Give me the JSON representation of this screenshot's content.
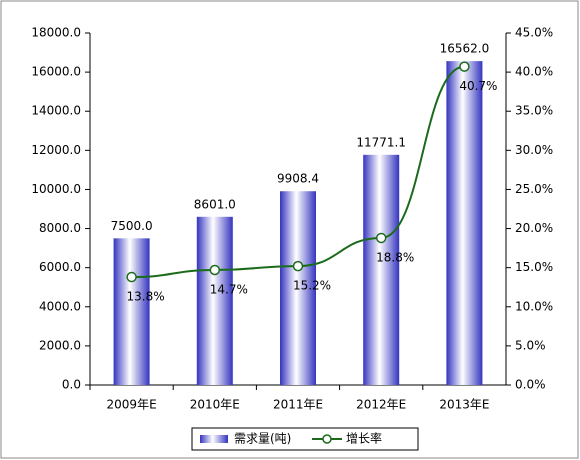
{
  "chart_data": {
    "type": "bar",
    "categories": [
      "2009年E",
      "2010年E",
      "2011年E",
      "2012年E",
      "2013年E"
    ],
    "series": [
      {
        "name": "需求量(吨)",
        "type": "bar",
        "color": "#3434c0",
        "values": [
          7500.0,
          8601.0,
          9908.4,
          11771.1,
          16562.0
        ],
        "value_labels": [
          "7500.0",
          "8601.0",
          "9908.4",
          "11771.1",
          "16562.0"
        ]
      },
      {
        "name": "增长率",
        "type": "line",
        "axis": "y2",
        "color": "#1b6b1b",
        "values": [
          13.8,
          14.7,
          15.2,
          18.8,
          40.7
        ],
        "value_labels": [
          "13.8%",
          "14.7%",
          "15.2%",
          "18.8%",
          "40.7%"
        ]
      }
    ],
    "ylim": [
      0,
      18000
    ],
    "yticks": [
      {
        "value": 0,
        "label": "0.0"
      },
      {
        "value": 2000,
        "label": "2000.0"
      },
      {
        "value": 4000,
        "label": "4000.0"
      },
      {
        "value": 6000,
        "label": "6000.0"
      },
      {
        "value": 8000,
        "label": "8000.0"
      },
      {
        "value": 10000,
        "label": "10000.0"
      },
      {
        "value": 12000,
        "label": "12000.0"
      },
      {
        "value": 14000,
        "label": "14000.0"
      },
      {
        "value": 16000,
        "label": "16000.0"
      },
      {
        "value": 18000,
        "label": "18000.0"
      }
    ],
    "y2lim": [
      0,
      45
    ],
    "y2ticks": [
      {
        "value": 0,
        "label": "0.0%"
      },
      {
        "value": 5,
        "label": "5.0%"
      },
      {
        "value": 10,
        "label": "10.0%"
      },
      {
        "value": 15,
        "label": "15.0%"
      },
      {
        "value": 20,
        "label": "20.0%"
      },
      {
        "value": 25,
        "label": "25.0%"
      },
      {
        "value": 30,
        "label": "30.0%"
      },
      {
        "value": 35,
        "label": "35.0%"
      },
      {
        "value": 40,
        "label": "40.0%"
      },
      {
        "value": 45,
        "label": "45.0%"
      }
    ],
    "grid": false,
    "legend": "bottom"
  }
}
